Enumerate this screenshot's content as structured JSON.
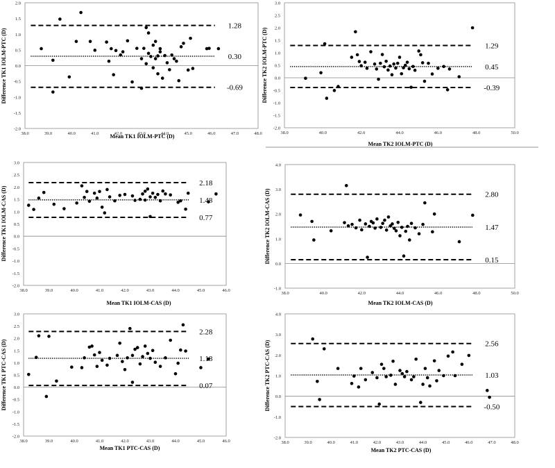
{
  "chart_data": [
    {
      "type": "scatter",
      "title": "",
      "xlabel": "Mean TK1 IOLM-PTC (D)",
      "ylabel": "Difference TK1 IOLM-PTC (D)",
      "xlim": [
        38.0,
        48.0
      ],
      "ylim": [
        -2.0,
        2.0
      ],
      "xticks": [
        "38.0",
        "39.0",
        "40.0",
        "41.0",
        "42.0",
        "43.0",
        "44.0",
        "45.0",
        "46.0",
        "47.0",
        "48.0"
      ],
      "yticks": [
        "-2.0",
        "-1.5",
        "-1.0",
        "-0.5",
        "0.0",
        "0.5",
        "1.0",
        "1.5",
        "2.0"
      ],
      "mean_label": "0.30",
      "upper_label": "1.28",
      "lower_label": "-0.69",
      "mean": 0.3,
      "upper_loa": 1.28,
      "lower_loa": -0.69,
      "points": [
        [
          38.7,
          0.54
        ],
        [
          39.2,
          -0.84
        ],
        [
          39.2,
          0.17
        ],
        [
          39.5,
          1.48
        ],
        [
          39.9,
          -0.36
        ],
        [
          40.2,
          0.77
        ],
        [
          40.4,
          1.69
        ],
        [
          40.8,
          0.77
        ],
        [
          41.0,
          0.49
        ],
        [
          41.5,
          0.75
        ],
        [
          41.6,
          0.14
        ],
        [
          41.7,
          0.54
        ],
        [
          41.8,
          -0.29
        ],
        [
          41.9,
          0.48
        ],
        [
          42.1,
          0.34
        ],
        [
          42.2,
          0.44
        ],
        [
          42.4,
          0.79
        ],
        [
          42.6,
          -0.52
        ],
        [
          42.8,
          0.55
        ],
        [
          43.0,
          0.22
        ],
        [
          43.0,
          -0.72
        ],
        [
          43.1,
          0.55
        ],
        [
          43.2,
          1.21
        ],
        [
          43.2,
          0.06
        ],
        [
          43.3,
          0.39
        ],
        [
          43.3,
          1.04
        ],
        [
          43.4,
          0.29
        ],
        [
          43.5,
          -0.07
        ],
        [
          43.5,
          0.65
        ],
        [
          43.6,
          0.77
        ],
        [
          43.6,
          0.22
        ],
        [
          43.7,
          -0.26
        ],
        [
          43.7,
          0.31
        ],
        [
          43.8,
          0.54
        ],
        [
          43.8,
          0.44
        ],
        [
          43.9,
          -0.4
        ],
        [
          44.0,
          0.32
        ],
        [
          44.1,
          0.09
        ],
        [
          44.2,
          -0.13
        ],
        [
          44.3,
          0.34
        ],
        [
          44.4,
          0.22
        ],
        [
          44.5,
          0.14
        ],
        [
          44.6,
          -0.48
        ],
        [
          44.7,
          0.6
        ],
        [
          44.8,
          0.71
        ],
        [
          45.0,
          -0.14
        ],
        [
          45.1,
          0.87
        ],
        [
          45.2,
          -0.09
        ],
        [
          45.8,
          0.54
        ],
        [
          45.9,
          0.55
        ],
        [
          46.3,
          0.54
        ]
      ]
    },
    {
      "type": "scatter",
      "title": "",
      "xlabel": "Mean TK2 IOLM-PTC (D)",
      "ylabel": "Difference TK2 IOLM-PTC (D)",
      "xlim": [
        38.0,
        50.0
      ],
      "ylim": [
        -2.0,
        3.0
      ],
      "xticks": [
        "38.0",
        "40.0",
        "42.0",
        "44.0",
        "46.0",
        "48.0",
        "50.0"
      ],
      "yticks": [
        "-2.0",
        "-1.5",
        "-1.0",
        "-0.5",
        "0.0",
        "0.5",
        "1.0",
        "1.5",
        "2.0",
        "2.5",
        "3.0"
      ],
      "mean_label": "0.45",
      "upper_label": "1.29",
      "lower_label": "-0.39",
      "mean": 0.45,
      "upper_loa": 1.29,
      "lower_loa": -0.39,
      "points": [
        [
          39.1,
          -0.02
        ],
        [
          39.9,
          0.2
        ],
        [
          40.1,
          1.36
        ],
        [
          40.2,
          -0.82
        ],
        [
          40.6,
          -0.51
        ],
        [
          40.8,
          -0.35
        ],
        [
          41.5,
          0.82
        ],
        [
          41.7,
          1.84
        ],
        [
          41.8,
          0.92
        ],
        [
          41.9,
          0.65
        ],
        [
          42.0,
          0.48
        ],
        [
          42.2,
          0.62
        ],
        [
          42.3,
          0.38
        ],
        [
          42.5,
          1.04
        ],
        [
          42.7,
          0.55
        ],
        [
          42.8,
          0.35
        ],
        [
          42.9,
          -0.06
        ],
        [
          43.0,
          0.58
        ],
        [
          43.1,
          0.93
        ],
        [
          43.2,
          0.44
        ],
        [
          43.3,
          0.66
        ],
        [
          43.4,
          0.31
        ],
        [
          43.5,
          0.47
        ],
        [
          43.6,
          0.12
        ],
        [
          43.7,
          0.55
        ],
        [
          43.8,
          0.39
        ],
        [
          43.9,
          0.58
        ],
        [
          44.0,
          0.82
        ],
        [
          44.1,
          0.16
        ],
        [
          44.2,
          0.4
        ],
        [
          44.3,
          0.5
        ],
        [
          44.4,
          0.62
        ],
        [
          44.5,
          0.36
        ],
        [
          44.6,
          -0.38
        ],
        [
          44.7,
          0.45
        ],
        [
          44.8,
          0.3
        ],
        [
          45.0,
          1.07
        ],
        [
          45.1,
          0.92
        ],
        [
          45.2,
          0.6
        ],
        [
          45.3,
          -0.14
        ],
        [
          45.5,
          0.58
        ],
        [
          45.7,
          0.15
        ],
        [
          46.0,
          0.38
        ],
        [
          46.3,
          0.45
        ],
        [
          46.6,
          0.35
        ],
        [
          46.5,
          -0.48
        ],
        [
          47.1,
          0.04
        ],
        [
          47.8,
          2.0
        ]
      ]
    },
    {
      "type": "scatter",
      "title": "",
      "xlabel": "Mean TK1 IOLM-CAS (D)",
      "ylabel": "Difference TK1 IOLM-CAS (D)",
      "xlim": [
        38.0,
        46.0
      ],
      "ylim": [
        -2.0,
        3.0
      ],
      "xticks": [
        "38.0",
        "39.0",
        "40.0",
        "41.0",
        "42.0",
        "43.0",
        "44.0",
        "45.0",
        "46.0"
      ],
      "yticks": [
        "-2.0",
        "-1.5",
        "-1.0",
        "-0.5",
        "0.0",
        "0.5",
        "1.0",
        "1.5",
        "2.0",
        "2.5",
        "3.0"
      ],
      "mean_label": "1.48",
      "upper_label": "2.18",
      "lower_label": "0.77",
      "mean": 1.48,
      "upper_loa": 2.18,
      "lower_loa": 0.77,
      "points": [
        [
          38.2,
          1.26
        ],
        [
          38.4,
          1.09
        ],
        [
          38.6,
          1.55
        ],
        [
          38.8,
          1.78
        ],
        [
          39.2,
          1.3
        ],
        [
          39.6,
          1.12
        ],
        [
          40.1,
          1.35
        ],
        [
          40.3,
          2.05
        ],
        [
          40.4,
          1.58
        ],
        [
          40.5,
          1.82
        ],
        [
          40.6,
          1.42
        ],
        [
          40.8,
          1.75
        ],
        [
          40.9,
          1.55
        ],
        [
          41.0,
          1.82
        ],
        [
          41.1,
          1.18
        ],
        [
          41.2,
          0.95
        ],
        [
          41.3,
          1.9
        ],
        [
          41.4,
          1.6
        ],
        [
          41.6,
          1.44
        ],
        [
          41.8,
          1.66
        ],
        [
          42.0,
          1.7
        ],
        [
          42.3,
          1.64
        ],
        [
          42.4,
          1.46
        ],
        [
          42.6,
          1.5
        ],
        [
          42.7,
          1.72
        ],
        [
          42.8,
          1.83
        ],
        [
          42.8,
          1.47
        ],
        [
          42.9,
          1.92
        ],
        [
          43.0,
          1.6
        ],
        [
          43.0,
          0.8
        ],
        [
          43.1,
          1.75
        ],
        [
          43.2,
          1.58
        ],
        [
          43.3,
          1.7
        ],
        [
          43.4,
          1.44
        ],
        [
          43.5,
          1.84
        ],
        [
          43.6,
          1.72
        ],
        [
          43.8,
          1.68
        ],
        [
          44.1,
          1.38
        ],
        [
          44.2,
          1.44
        ],
        [
          44.4,
          1.1
        ],
        [
          44.5,
          1.75
        ],
        [
          45.3,
          1.4
        ],
        [
          45.6,
          1.72
        ]
      ]
    },
    {
      "type": "scatter",
      "title": "",
      "xlabel": "Mean TK2 IOLM-CAS (D)",
      "ylabel": "Difference TK2 IOLM-CAS (D)",
      "xlim": [
        38.0,
        50.0
      ],
      "ylim": [
        -1.0,
        4.0
      ],
      "xticks": [
        "38.0",
        "40.0",
        "42.0",
        "44.0",
        "46.0",
        "48.0",
        "50.0"
      ],
      "yticks": [
        "-1.0",
        "0.0",
        "1.0",
        "2.0",
        "3.0",
        "4.0"
      ],
      "mean_label": "1.47",
      "upper_label": "2.80",
      "lower_label": "0.15",
      "mean": 1.47,
      "upper_loa": 2.8,
      "lower_loa": 0.15,
      "points": [
        [
          38.8,
          1.96
        ],
        [
          39.4,
          1.7
        ],
        [
          39.5,
          0.95
        ],
        [
          40.4,
          1.32
        ],
        [
          41.1,
          1.65
        ],
        [
          41.2,
          3.15
        ],
        [
          41.3,
          1.52
        ],
        [
          41.5,
          1.58
        ],
        [
          41.7,
          1.44
        ],
        [
          41.9,
          1.75
        ],
        [
          42.0,
          1.36
        ],
        [
          42.2,
          1.6
        ],
        [
          42.3,
          0.25
        ],
        [
          42.4,
          1.5
        ],
        [
          42.5,
          1.7
        ],
        [
          42.6,
          1.64
        ],
        [
          42.7,
          1.43
        ],
        [
          42.8,
          1.8
        ],
        [
          43.0,
          1.46
        ],
        [
          43.1,
          1.62
        ],
        [
          43.2,
          1.75
        ],
        [
          43.3,
          1.35
        ],
        [
          43.4,
          1.88
        ],
        [
          43.5,
          1.52
        ],
        [
          43.6,
          1.6
        ],
        [
          43.7,
          1.42
        ],
        [
          43.8,
          1.32
        ],
        [
          43.9,
          1.66
        ],
        [
          44.0,
          1.12
        ],
        [
          44.1,
          1.46
        ],
        [
          44.2,
          0.3
        ],
        [
          44.3,
          1.3
        ],
        [
          44.4,
          1.5
        ],
        [
          44.5,
          0.95
        ],
        [
          44.6,
          1.62
        ],
        [
          44.8,
          1.44
        ],
        [
          45.0,
          1.2
        ],
        [
          45.2,
          1.58
        ],
        [
          45.3,
          2.45
        ],
        [
          45.7,
          1.28
        ],
        [
          45.8,
          2.0
        ],
        [
          47.1,
          0.88
        ],
        [
          47.8,
          1.95
        ]
      ]
    },
    {
      "type": "scatter",
      "title": "",
      "xlabel": "Mean TK1 PTC-CAS (D)",
      "ylabel": "Difference TK1 PTC-CAS (D)",
      "xlim": [
        38.0,
        46.0
      ],
      "ylim": [
        -2.0,
        3.0
      ],
      "xticks": [
        "38.0",
        "39.0",
        "40.0",
        "41.0",
        "42.0",
        "43.0",
        "44.0",
        "45.0",
        "46.0"
      ],
      "yticks": [
        "-2.0",
        "-1.5",
        "-1.0",
        "-0.5",
        "0.0",
        "0.5",
        "1.0",
        "1.5",
        "2.0",
        "2.5",
        "3.0"
      ],
      "mean_label": "1.18",
      "upper_label": "2.28",
      "lower_label": "0.07",
      "mean": 1.18,
      "upper_loa": 2.28,
      "lower_loa": 0.07,
      "points": [
        [
          38.2,
          0.52
        ],
        [
          38.5,
          1.22
        ],
        [
          38.6,
          2.1
        ],
        [
          38.9,
          -0.38
        ],
        [
          39.0,
          2.08
        ],
        [
          39.3,
          0.25
        ],
        [
          39.9,
          0.82
        ],
        [
          40.3,
          0.8
        ],
        [
          40.4,
          1.2
        ],
        [
          40.6,
          1.64
        ],
        [
          40.7,
          1.68
        ],
        [
          40.8,
          1.32
        ],
        [
          40.9,
          0.85
        ],
        [
          41.0,
          1.42
        ],
        [
          41.1,
          1.1
        ],
        [
          41.3,
          0.9
        ],
        [
          41.4,
          1.18
        ],
        [
          41.7,
          1.3
        ],
        [
          41.8,
          1.8
        ],
        [
          41.9,
          1.05
        ],
        [
          42.0,
          0.72
        ],
        [
          42.1,
          1.2
        ],
        [
          42.2,
          2.4
        ],
        [
          42.3,
          1.3
        ],
        [
          42.3,
          0.2
        ],
        [
          42.4,
          1.55
        ],
        [
          42.5,
          1.62
        ],
        [
          42.6,
          0.95
        ],
        [
          42.7,
          1.25
        ],
        [
          42.8,
          1.68
        ],
        [
          42.9,
          1.38
        ],
        [
          43.0,
          1.18
        ],
        [
          43.1,
          1.5
        ],
        [
          43.2,
          1.02
        ],
        [
          43.4,
          0.85
        ],
        [
          43.6,
          1.2
        ],
        [
          43.8,
          1.92
        ],
        [
          44.0,
          0.55
        ],
        [
          44.1,
          0.98
        ],
        [
          44.2,
          1.52
        ],
        [
          44.3,
          2.55
        ],
        [
          44.4,
          1.48
        ],
        [
          45.0,
          0.8
        ],
        [
          45.3,
          1.15
        ]
      ]
    },
    {
      "type": "scatter",
      "title": "",
      "xlabel": "Mean TK2 PTC-CAS (D)",
      "ylabel": "Difference TK2 PTC-CAS (D)",
      "xlim": [
        38.0,
        48.0
      ],
      "ylim": [
        -2.0,
        4.0
      ],
      "xticks": [
        "38.0",
        "39.0",
        "40.0",
        "41.0",
        "42.0",
        "43.0",
        "44.0",
        "45.0",
        "46.0",
        "47.0",
        "48.0"
      ],
      "yticks": [
        "-2.0",
        "-1.0",
        "0.0",
        "1.0",
        "2.0",
        "3.0",
        "4.0"
      ],
      "mean_label": "1.03",
      "upper_label": "2.56",
      "lower_label": "-0.50",
      "mean": 1.03,
      "upper_loa": 2.56,
      "lower_loa": -0.5,
      "points": [
        [
          39.2,
          2.78
        ],
        [
          39.4,
          0.72
        ],
        [
          39.5,
          -0.16
        ],
        [
          39.7,
          2.3
        ],
        [
          40.3,
          1.35
        ],
        [
          40.9,
          0.62
        ],
        [
          41.0,
          0.98
        ],
        [
          41.2,
          0.45
        ],
        [
          41.3,
          1.35
        ],
        [
          41.5,
          0.8
        ],
        [
          41.8,
          1.15
        ],
        [
          42.0,
          0.9
        ],
        [
          42.1,
          -0.38
        ],
        [
          42.2,
          1.55
        ],
        [
          42.3,
          1.35
        ],
        [
          42.4,
          0.95
        ],
        [
          42.6,
          1.02
        ],
        [
          42.7,
          1.7
        ],
        [
          42.8,
          0.58
        ],
        [
          43.0,
          1.25
        ],
        [
          43.1,
          1.1
        ],
        [
          43.2,
          0.95
        ],
        [
          43.3,
          1.2
        ],
        [
          43.5,
          0.8
        ],
        [
          43.6,
          0.95
        ],
        [
          43.7,
          1.8
        ],
        [
          43.9,
          -0.3
        ],
        [
          44.0,
          0.58
        ],
        [
          44.1,
          1.35
        ],
        [
          44.2,
          0.9
        ],
        [
          44.3,
          0.5
        ],
        [
          44.5,
          1.72
        ],
        [
          44.6,
          0.75
        ],
        [
          44.7,
          1.25
        ],
        [
          44.9,
          1.0
        ],
        [
          45.1,
          1.95
        ],
        [
          45.3,
          2.15
        ],
        [
          45.4,
          1.0
        ],
        [
          45.7,
          1.55
        ],
        [
          46.0,
          1.98
        ],
        [
          46.8,
          0.28
        ],
        [
          46.9,
          -0.05
        ]
      ]
    }
  ]
}
